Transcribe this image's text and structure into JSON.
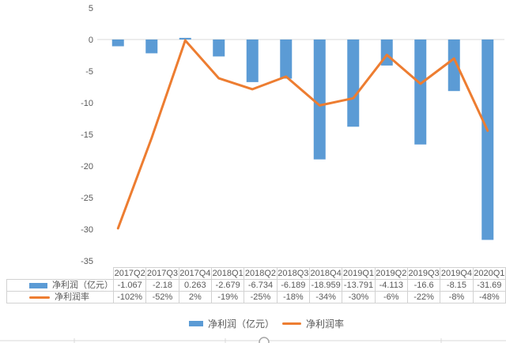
{
  "chart_data": {
    "type": "bar",
    "subtype": "bar+line combo",
    "title": "",
    "xlabel": "",
    "ylabel": "",
    "categories": [
      "2017Q2",
      "2017Q3",
      "2017Q4",
      "2018Q1",
      "2018Q2",
      "2018Q3",
      "2018Q4",
      "2019Q1",
      "2019Q2",
      "2019Q3",
      "2019Q4",
      "2020Q1"
    ],
    "series": [
      {
        "name": "净利润（亿元）",
        "type": "bar",
        "axis": "primary",
        "color": "#5B9BD5",
        "values": [
          -1.067,
          -2.18,
          0.263,
          -2.679,
          -6.734,
          -6.189,
          -18.959,
          -13.791,
          -4.113,
          -16.6,
          -8.15,
          -31.69
        ]
      },
      {
        "name": "净利润率",
        "type": "line",
        "axis": "secondary",
        "color": "#ED7D31",
        "values_percent": [
          -102,
          -52,
          2,
          -19,
          -25,
          -18,
          -34,
          -30,
          -6,
          -22,
          -8,
          -48
        ],
        "labels": [
          "-102%",
          "-52%",
          "2%",
          "-19%",
          "-25%",
          "-18%",
          "-34%",
          "-30%",
          "-6%",
          "-22%",
          "-8%",
          "-48%"
        ]
      }
    ],
    "primary_axis": {
      "min": -35,
      "max": 5,
      "step": 5,
      "tick_labels": [
        "5",
        "0",
        "-5",
        "-10",
        "-15",
        "-20",
        "-25",
        "-30",
        "-35"
      ],
      "tick_values": [
        5,
        0,
        -5,
        -10,
        -15,
        -20,
        -25,
        -30,
        -35
      ]
    },
    "secondary_axis": {
      "min": -120,
      "max": 20,
      "visible": false
    },
    "ylim": [
      -35,
      5
    ],
    "grid": "zero-line-only",
    "legend_position": "bottom"
  },
  "table": {
    "corner_label": "",
    "columns": [
      "2017Q2",
      "2017Q3",
      "2017Q4",
      "2018Q1",
      "2018Q2",
      "2018Q3",
      "2018Q4",
      "2019Q1",
      "2019Q2",
      "2019Q3",
      "2019Q4",
      "2020Q1"
    ],
    "rows": [
      {
        "label": "净利润（亿元）",
        "marker": "bar",
        "cells": [
          "-1.067",
          "-2.18",
          "0.263",
          "-2.679",
          "-6.734",
          "-6.189",
          "-18.959",
          "-13.791",
          "-4.113",
          "-16.6",
          "-8.15",
          "-31.69"
        ]
      },
      {
        "label": "净利润率",
        "marker": "line",
        "cells": [
          "-102%",
          "-52%",
          "2%",
          "-19%",
          "-25%",
          "-18%",
          "-34%",
          "-30%",
          "-6%",
          "-22%",
          "-8%",
          "-48%"
        ]
      }
    ]
  },
  "legend": {
    "items": [
      {
        "label": "净利润（亿元）",
        "marker": "bar",
        "color": "#5B9BD5"
      },
      {
        "label": "净利润率",
        "marker": "line",
        "color": "#ED7D31"
      }
    ]
  },
  "colors": {
    "bar": "#5B9BD5",
    "line": "#ED7D31",
    "text": "#595959",
    "grid": "#D9D9D9",
    "table_border": "#D2D2D2",
    "handle_border": "#A6A6A6",
    "background": "#FFFFFF"
  }
}
